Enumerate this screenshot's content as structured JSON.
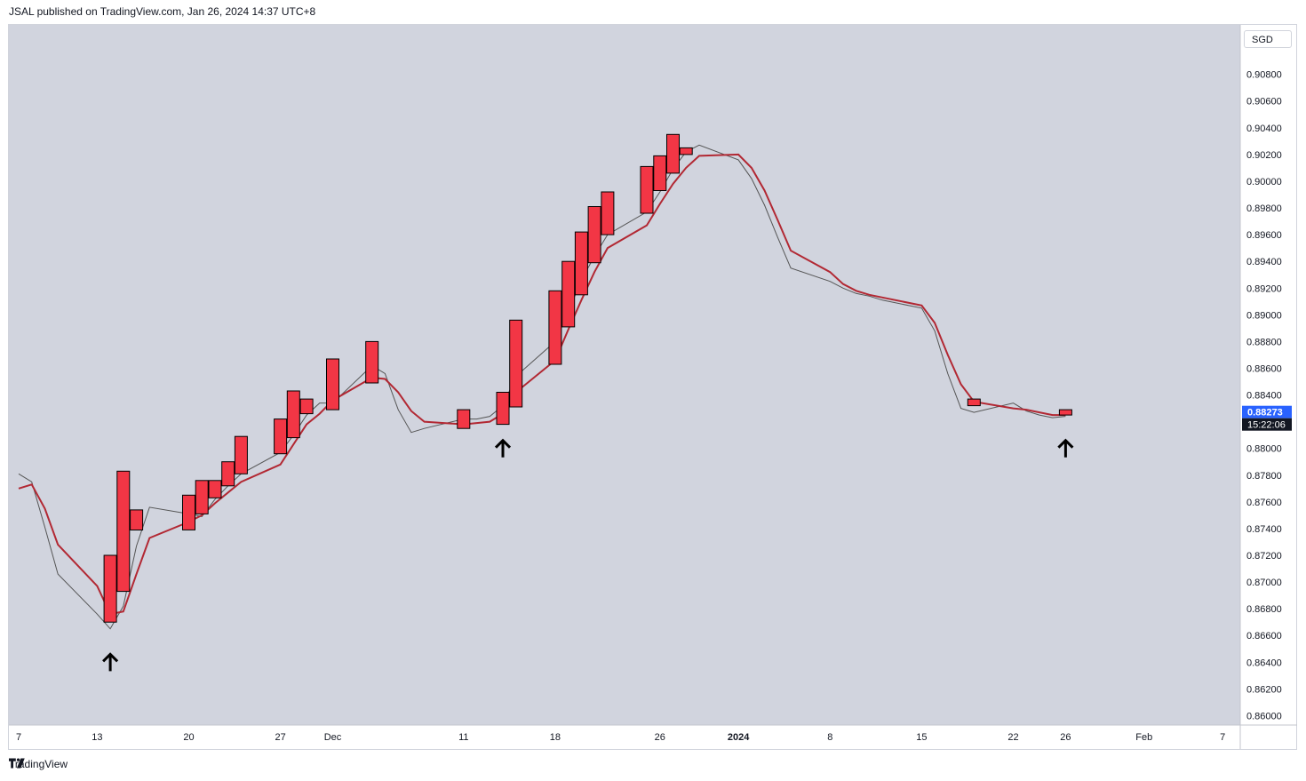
{
  "header": {
    "published": "JSAL published on TradingView.com, Jan 26, 2024 14:37 UTC+8"
  },
  "footer": {
    "brand": "TradingView"
  },
  "currency": "SGD",
  "last_price": {
    "value": "0.88273",
    "countdown": "15:22:06"
  },
  "colors": {
    "plot_bg": "#d1d4de",
    "candle": "#f23645",
    "ma_red": "#b22833",
    "ma_grey": "#555555",
    "price_tag": "#2962ff"
  },
  "chart_data": {
    "type": "candlestick",
    "y_ticks": [
      "0.90800",
      "0.90600",
      "0.90400",
      "0.90200",
      "0.90000",
      "0.89800",
      "0.89600",
      "0.89400",
      "0.89200",
      "0.89000",
      "0.88800",
      "0.88600",
      "0.88400",
      "0.88200",
      "0.88000",
      "0.87800",
      "0.87600",
      "0.87400",
      "0.87200",
      "0.87000",
      "0.86800",
      "0.86600",
      "0.86400",
      "0.86200",
      "0.86000"
    ],
    "ylim": [
      0.8593,
      0.9117
    ],
    "x_ticks": [
      "7",
      "13",
      "20",
      "27",
      "Dec",
      "11",
      "18",
      "26",
      "2024",
      "8",
      "15",
      "22",
      "26",
      "Feb",
      "7"
    ],
    "bold_x_ticks": [
      "2024"
    ],
    "candles": [
      {
        "date": "2023-11-14",
        "open": 0.872,
        "close": 0.867
      },
      {
        "date": "2023-11-15",
        "open": 0.8783,
        "close": 0.8693
      },
      {
        "date": "2023-11-16",
        "open": 0.8754,
        "close": 0.8739
      },
      {
        "date": "2023-11-20",
        "open": 0.8765,
        "close": 0.8739
      },
      {
        "date": "2023-11-21",
        "open": 0.8776,
        "close": 0.8751
      },
      {
        "date": "2023-11-22",
        "open": 0.8776,
        "close": 0.8763
      },
      {
        "date": "2023-11-23",
        "open": 0.879,
        "close": 0.8772
      },
      {
        "date": "2023-11-24",
        "open": 0.8809,
        "close": 0.8781
      },
      {
        "date": "2023-11-27",
        "open": 0.8822,
        "close": 0.8796
      },
      {
        "date": "2023-11-28",
        "open": 0.8843,
        "close": 0.8808
      },
      {
        "date": "2023-11-29",
        "open": 0.8837,
        "close": 0.8826
      },
      {
        "date": "2023-12-01",
        "open": 0.8867,
        "close": 0.8829
      },
      {
        "date": "2023-12-04",
        "open": 0.888,
        "close": 0.8849
      },
      {
        "date": "2023-12-11",
        "open": 0.8829,
        "close": 0.8815
      },
      {
        "date": "2023-12-14",
        "open": 0.8842,
        "close": 0.8818
      },
      {
        "date": "2023-12-15",
        "open": 0.8896,
        "close": 0.8831
      },
      {
        "date": "2023-12-18",
        "open": 0.8918,
        "close": 0.8863
      },
      {
        "date": "2023-12-19",
        "open": 0.894,
        "close": 0.8891
      },
      {
        "date": "2023-12-20",
        "open": 0.8962,
        "close": 0.8915
      },
      {
        "date": "2023-12-21",
        "open": 0.8981,
        "close": 0.8939
      },
      {
        "date": "2023-12-22",
        "open": 0.8992,
        "close": 0.896
      },
      {
        "date": "2023-12-25",
        "open": 0.9011,
        "close": 0.8976
      },
      {
        "date": "2023-12-26",
        "open": 0.9019,
        "close": 0.8993
      },
      {
        "date": "2023-12-27",
        "open": 0.9035,
        "close": 0.9006
      },
      {
        "date": "2023-12-28",
        "open": 0.9025,
        "close": 0.902
      },
      {
        "date": "2024-01-19",
        "open": 0.8837,
        "close": 0.8832
      },
      {
        "date": "2024-01-26",
        "open": 0.8829,
        "close": 0.8825
      }
    ],
    "ma_red": [
      [
        "2023-11-07",
        0.877
      ],
      [
        "2023-11-08",
        0.8773
      ],
      [
        "2023-11-09",
        0.8755
      ],
      [
        "2023-11-10",
        0.8728
      ],
      [
        "2023-11-13",
        0.8697
      ],
      [
        "2023-11-14",
        0.8676
      ],
      [
        "2023-11-15",
        0.8678
      ],
      [
        "2023-11-16",
        0.8706
      ],
      [
        "2023-11-17",
        0.8733
      ],
      [
        "2023-11-20",
        0.8745
      ],
      [
        "2023-11-21",
        0.875
      ],
      [
        "2023-11-22",
        0.8759
      ],
      [
        "2023-11-23",
        0.8767
      ],
      [
        "2023-11-24",
        0.8775
      ],
      [
        "2023-11-27",
        0.8788
      ],
      [
        "2023-11-28",
        0.8803
      ],
      [
        "2023-11-29",
        0.8818
      ],
      [
        "2023-11-30",
        0.8826
      ],
      [
        "2023-12-01",
        0.8836
      ],
      [
        "2023-12-04",
        0.8853
      ],
      [
        "2023-12-05",
        0.8852
      ],
      [
        "2023-12-06",
        0.8842
      ],
      [
        "2023-12-07",
        0.8828
      ],
      [
        "2023-12-08",
        0.882
      ],
      [
        "2023-12-11",
        0.8818
      ],
      [
        "2023-12-12",
        0.8819
      ],
      [
        "2023-12-13",
        0.882
      ],
      [
        "2023-12-14",
        0.8826
      ],
      [
        "2023-12-15",
        0.8842
      ],
      [
        "2023-12-18",
        0.8866
      ],
      [
        "2023-12-19",
        0.8889
      ],
      [
        "2023-12-20",
        0.8911
      ],
      [
        "2023-12-21",
        0.8932
      ],
      [
        "2023-12-22",
        0.895
      ],
      [
        "2023-12-25",
        0.8967
      ],
      [
        "2023-12-26",
        0.8983
      ],
      [
        "2023-12-27",
        0.8998
      ],
      [
        "2023-12-28",
        0.901
      ],
      [
        "2023-12-29",
        0.9019
      ],
      [
        "2024-01-01",
        0.902
      ],
      [
        "2024-01-02",
        0.901
      ],
      [
        "2024-01-03",
        0.8993
      ],
      [
        "2024-01-04",
        0.8971
      ],
      [
        "2024-01-05",
        0.8948
      ],
      [
        "2024-01-08",
        0.8932
      ],
      [
        "2024-01-09",
        0.8923
      ],
      [
        "2024-01-10",
        0.8918
      ],
      [
        "2024-01-11",
        0.8915
      ],
      [
        "2024-01-12",
        0.8913
      ],
      [
        "2024-01-15",
        0.8907
      ],
      [
        "2024-01-16",
        0.8894
      ],
      [
        "2024-01-17",
        0.887
      ],
      [
        "2024-01-18",
        0.8848
      ],
      [
        "2024-01-19",
        0.8835
      ],
      [
        "2024-01-22",
        0.883
      ],
      [
        "2024-01-23",
        0.8829
      ],
      [
        "2024-01-24",
        0.8827
      ],
      [
        "2024-01-25",
        0.8825
      ],
      [
        "2024-01-26",
        0.8825
      ]
    ],
    "ma_grey": [
      [
        "2023-11-07",
        0.8781
      ],
      [
        "2023-11-08",
        0.8775
      ],
      [
        "2023-11-09",
        0.8741
      ],
      [
        "2023-11-10",
        0.8706
      ],
      [
        "2023-11-13",
        0.8676
      ],
      [
        "2023-11-14",
        0.8665
      ],
      [
        "2023-11-15",
        0.8682
      ],
      [
        "2023-11-16",
        0.8727
      ],
      [
        "2023-11-17",
        0.8756
      ],
      [
        "2023-11-20",
        0.8751
      ],
      [
        "2023-11-21",
        0.8749
      ],
      [
        "2023-11-22",
        0.8762
      ],
      [
        "2023-11-23",
        0.8772
      ],
      [
        "2023-11-24",
        0.8781
      ],
      [
        "2023-11-27",
        0.8797
      ],
      [
        "2023-11-28",
        0.881
      ],
      [
        "2023-11-29",
        0.8825
      ],
      [
        "2023-11-30",
        0.8834
      ],
      [
        "2023-12-01",
        0.8834
      ],
      [
        "2023-12-04",
        0.8862
      ],
      [
        "2023-12-05",
        0.8856
      ],
      [
        "2023-12-06",
        0.8829
      ],
      [
        "2023-12-07",
        0.8812
      ],
      [
        "2023-12-08",
        0.8815
      ],
      [
        "2023-12-11",
        0.8822
      ],
      [
        "2023-12-12",
        0.8822
      ],
      [
        "2023-12-13",
        0.8824
      ],
      [
        "2023-12-14",
        0.8832
      ],
      [
        "2023-12-15",
        0.8854
      ],
      [
        "2023-12-18",
        0.888
      ],
      [
        "2023-12-19",
        0.8902
      ],
      [
        "2023-12-20",
        0.8926
      ],
      [
        "2023-12-21",
        0.8944
      ],
      [
        "2023-12-22",
        0.896
      ],
      [
        "2023-12-25",
        0.8977
      ],
      [
        "2023-12-26",
        0.8992
      ],
      [
        "2023-12-27",
        0.9009
      ],
      [
        "2023-12-28",
        0.9022
      ],
      [
        "2023-12-29",
        0.9027
      ],
      [
        "2024-01-01",
        0.9016
      ],
      [
        "2024-01-02",
        0.9002
      ],
      [
        "2024-01-03",
        0.8982
      ],
      [
        "2024-01-04",
        0.8958
      ],
      [
        "2024-01-05",
        0.8935
      ],
      [
        "2024-01-08",
        0.8925
      ],
      [
        "2024-01-09",
        0.892
      ],
      [
        "2024-01-10",
        0.8916
      ],
      [
        "2024-01-11",
        0.8914
      ],
      [
        "2024-01-12",
        0.8911
      ],
      [
        "2024-01-15",
        0.8905
      ],
      [
        "2024-01-16",
        0.8888
      ],
      [
        "2024-01-17",
        0.8856
      ],
      [
        "2024-01-18",
        0.883
      ],
      [
        "2024-01-19",
        0.8827
      ],
      [
        "2024-01-22",
        0.8834
      ],
      [
        "2024-01-23",
        0.8828
      ],
      [
        "2024-01-24",
        0.8825
      ],
      [
        "2024-01-25",
        0.8823
      ],
      [
        "2024-01-26",
        0.8824
      ]
    ],
    "arrows": [
      {
        "date": "2023-11-14",
        "price": 0.864
      },
      {
        "date": "2023-12-14",
        "price": 0.88
      },
      {
        "date": "2024-01-26",
        "price": 0.88
      }
    ]
  }
}
